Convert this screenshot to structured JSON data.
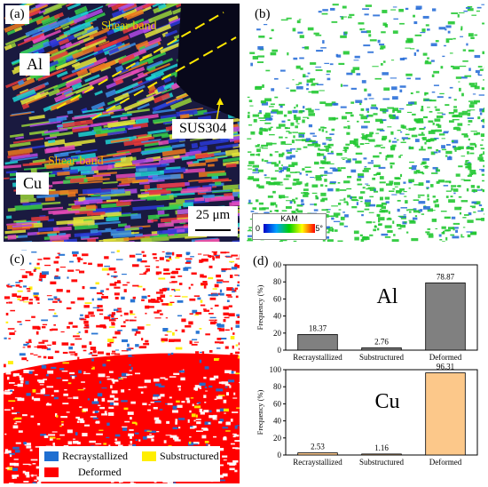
{
  "panels": {
    "a": {
      "label": "(a)",
      "text_al": "Al",
      "text_cu": "Cu",
      "text_sus": "SUS304",
      "shear_top": "Shear band",
      "shear_mid": "Shear band",
      "scale": "25 μm"
    },
    "b": {
      "label": "(b)",
      "kam_title": "KAM",
      "kam_min": "0",
      "kam_max": "5°"
    },
    "c": {
      "label": "(c)",
      "legend": {
        "recrystallized": "Recraystallized",
        "substructured": "Substructured",
        "deformed": "Deformed"
      }
    },
    "d": {
      "label": "(d)"
    }
  },
  "colors": {
    "al_bar": "#808080",
    "cu_bar": "#fcc88a",
    "recrystallized": "#1f6fd1",
    "substructured": "#ffee00",
    "deformed": "#ff0000",
    "kam_green": "#22c832"
  },
  "chart_data": [
    {
      "type": "bar",
      "title": "Al",
      "categories": [
        "Recraystallized",
        "Substructured",
        "Deformed"
      ],
      "values": [
        18.37,
        2.76,
        78.87
      ],
      "value_labels": [
        "18.37",
        "2.76",
        "78.87"
      ],
      "ylabel": "Frequency (%)",
      "ylim": [
        0,
        100
      ],
      "yticks": [
        "0",
        "20",
        "40",
        "60",
        "80",
        "100"
      ],
      "grid": false
    },
    {
      "type": "bar",
      "title": "Cu",
      "categories": [
        "Recraystallized",
        "Substructured",
        "Deformed"
      ],
      "values": [
        2.53,
        1.16,
        96.31
      ],
      "value_labels": [
        "2.53",
        "1.16",
        "96.31"
      ],
      "ylabel": "Frequency (%)",
      "ylim": [
        0,
        100
      ],
      "yticks": [
        "0",
        "20",
        "40",
        "60",
        "80",
        "100"
      ],
      "grid": false
    }
  ]
}
